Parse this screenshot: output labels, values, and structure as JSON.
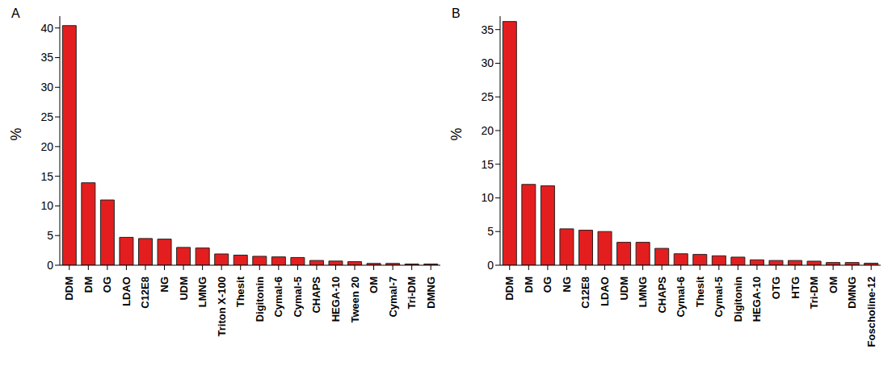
{
  "chart_data": [
    {
      "type": "bar",
      "title": "A",
      "y_label": "%",
      "categories": [
        "DDM",
        "DM",
        "OG",
        "LDAO",
        "C12E8",
        "NG",
        "UDM",
        "LMNG",
        "Triton X-100",
        "Thesit",
        "Digitonin",
        "Cymal-6",
        "Cymal-5",
        "CHAPS",
        "HEGA-10",
        "Tween 20",
        "OM",
        "Cymal-7",
        "Tri-DM",
        "DMNG"
      ],
      "values": [
        40.4,
        13.9,
        11.0,
        4.7,
        4.5,
        4.4,
        3.0,
        2.9,
        1.9,
        1.7,
        1.5,
        1.4,
        1.3,
        0.8,
        0.7,
        0.6,
        0.3,
        0.3,
        0.2,
        0.2
      ],
      "color": "#e41e1e",
      "ylim": [
        0,
        42
      ],
      "yticks": [
        0,
        5,
        10,
        15,
        20,
        25,
        30,
        35,
        40
      ],
      "grid": false
    },
    {
      "type": "bar",
      "title": "B",
      "y_label": "%",
      "categories": [
        "DDM",
        "DM",
        "OG",
        "NG",
        "C12E8",
        "LDAO",
        "UDM",
        "LMNG",
        "CHAPS",
        "Cymal-6",
        "Thesit",
        "Cymal-5",
        "Digitonin",
        "HEGA-10",
        "OTG",
        "HTG",
        "Tri-DM",
        "OM",
        "DMNG",
        "Foscholine-12"
      ],
      "values": [
        36.2,
        12.0,
        11.8,
        5.4,
        5.2,
        5.0,
        3.4,
        3.4,
        2.5,
        1.7,
        1.6,
        1.4,
        1.2,
        0.8,
        0.7,
        0.7,
        0.6,
        0.4,
        0.4,
        0.3
      ],
      "color": "#e41e1e",
      "ylim": [
        0,
        37
      ],
      "yticks": [
        0,
        5,
        10,
        15,
        20,
        25,
        30,
        35
      ],
      "grid": false
    }
  ]
}
